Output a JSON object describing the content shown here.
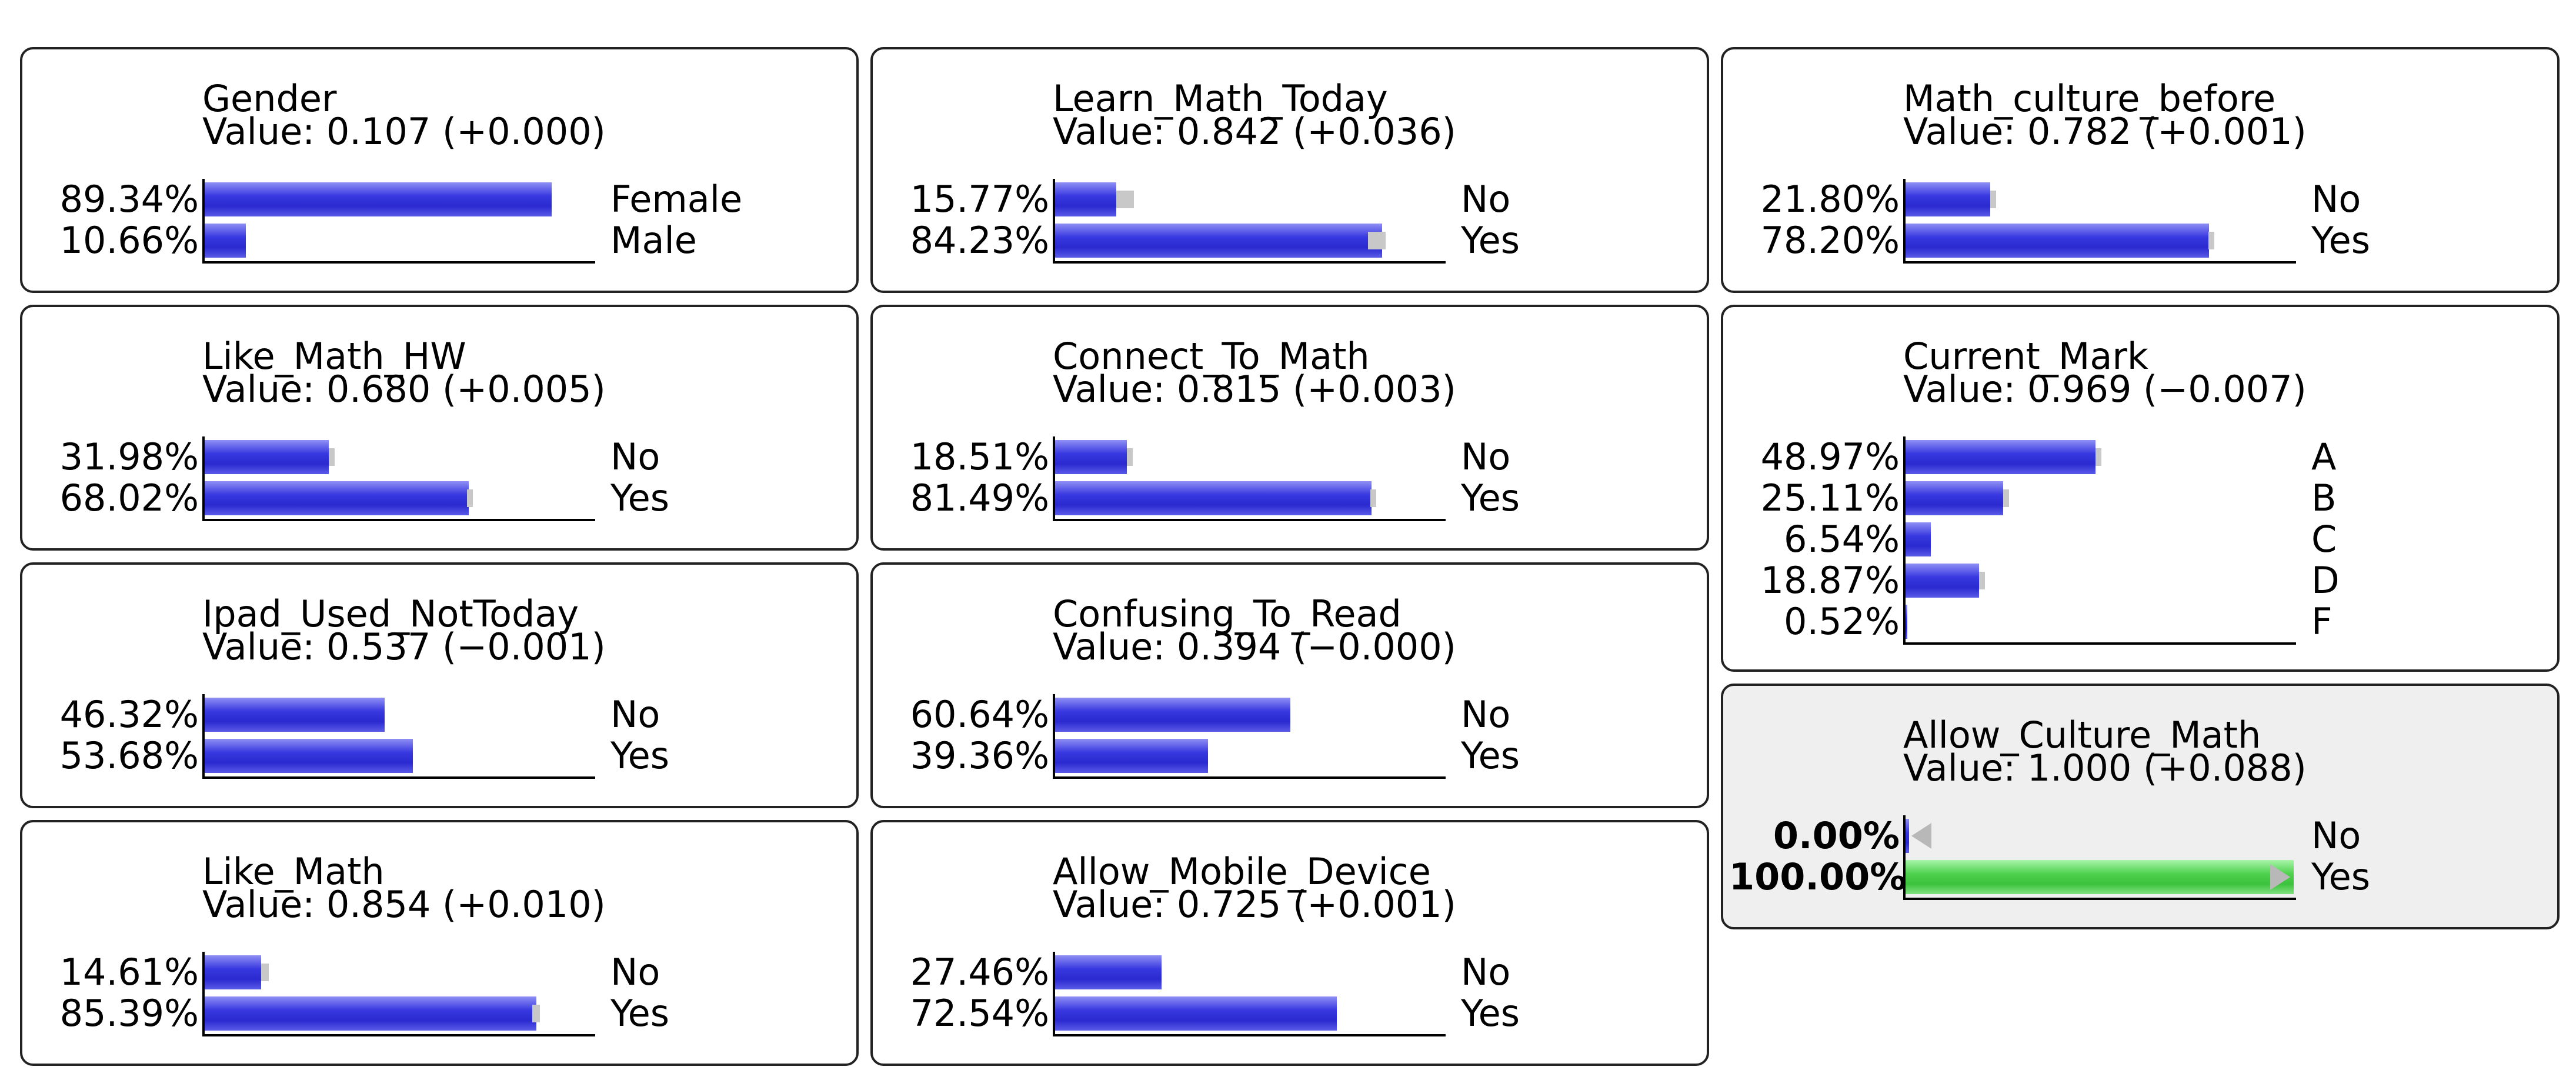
{
  "nodes": [
    {
      "id": "gender",
      "name": "Gender",
      "value_text": "Value: 0.107 (+0.000)",
      "states": [
        {
          "label": "Female",
          "pct": "89.34%",
          "p": 0.8934,
          "prev": 0.8934
        },
        {
          "label": "Male",
          "pct": "10.66%",
          "p": 0.1066,
          "prev": 0.1066
        }
      ]
    },
    {
      "id": "learn-math-today",
      "name": "Learn_Math_Today",
      "value_text": "Value: 0.842 (+0.036)",
      "states": [
        {
          "label": "No",
          "pct": "15.77%",
          "p": 0.1577,
          "prev": 0.194
        },
        {
          "label": "Yes",
          "pct": "84.23%",
          "p": 0.8423,
          "prev": 0.806
        }
      ]
    },
    {
      "id": "math-culture-before",
      "name": "Math_culture_before",
      "value_text": "Value: 0.782 (+0.001)",
      "states": [
        {
          "label": "No",
          "pct": "21.80%",
          "p": 0.218,
          "prev": 0.219
        },
        {
          "label": "Yes",
          "pct": "78.20%",
          "p": 0.782,
          "prev": 0.781
        }
      ]
    },
    {
      "id": "like-math-hw",
      "name": "Like_Math_HW",
      "value_text": "Value: 0.680 (+0.005)",
      "states": [
        {
          "label": "No",
          "pct": "31.98%",
          "p": 0.3198,
          "prev": 0.325
        },
        {
          "label": "Yes",
          "pct": "68.02%",
          "p": 0.6802,
          "prev": 0.675
        }
      ]
    },
    {
      "id": "connect-to-math",
      "name": "Connect_To_Math",
      "value_text": "Value: 0.815 (+0.003)",
      "states": [
        {
          "label": "No",
          "pct": "18.51%",
          "p": 0.1851,
          "prev": 0.188
        },
        {
          "label": "Yes",
          "pct": "81.49%",
          "p": 0.8149,
          "prev": 0.812
        }
      ]
    },
    {
      "id": "current-mark",
      "name": "Current_Mark",
      "value_text": "Value: 0.969 (−0.007)",
      "states": [
        {
          "label": "A",
          "pct": "48.97%",
          "p": 0.4897,
          "prev": 0.495
        },
        {
          "label": "B",
          "pct": "25.11%",
          "p": 0.2511,
          "prev": 0.257
        },
        {
          "label": "C",
          "pct": "6.54%",
          "p": 0.0654,
          "prev": 0.0654
        },
        {
          "label": "D",
          "pct": "18.87%",
          "p": 0.1887,
          "prev": 0.196
        },
        {
          "label": "F",
          "pct": "0.52%",
          "p": 0.0052,
          "prev": 0.0052
        }
      ]
    },
    {
      "id": "ipad-used-nottoday",
      "name": "Ipad_Used_NotToday",
      "value_text": "Value: 0.537 (−0.001)",
      "states": [
        {
          "label": "No",
          "pct": "46.32%",
          "p": 0.4632,
          "prev": 0.4632
        },
        {
          "label": "Yes",
          "pct": "53.68%",
          "p": 0.5368,
          "prev": 0.5368
        }
      ]
    },
    {
      "id": "confusing-to-read",
      "name": "Confusing_To_Read",
      "value_text": "Value: 0.394 (−0.000)",
      "states": [
        {
          "label": "No",
          "pct": "60.64%",
          "p": 0.6064,
          "prev": 0.6064
        },
        {
          "label": "Yes",
          "pct": "39.36%",
          "p": 0.3936,
          "prev": 0.3936
        }
      ]
    },
    {
      "id": "allow-culture-math",
      "name": "Allow_Culture_Math",
      "value_text": "Value: 1.000 (+0.088)",
      "evidence": true,
      "states": [
        {
          "label": "No",
          "pct": "0.00%",
          "p": 0.0,
          "prev": 0.088
        },
        {
          "label": "Yes",
          "pct": "100.00%",
          "p": 1.0,
          "prev": 0.912
        }
      ]
    },
    {
      "id": "like-math",
      "name": "Like_Math",
      "value_text": "Value: 0.854 (+0.010)",
      "states": [
        {
          "label": "No",
          "pct": "14.61%",
          "p": 0.1461,
          "prev": 0.156
        },
        {
          "label": "Yes",
          "pct": "85.39%",
          "p": 0.8539,
          "prev": 0.844
        }
      ]
    },
    {
      "id": "allow-mobile-device",
      "name": "Allow_Mobile_Device",
      "value_text": "Value: 0.725 (+0.001)",
      "states": [
        {
          "label": "No",
          "pct": "27.46%",
          "p": 0.2746,
          "prev": 0.2746
        },
        {
          "label": "Yes",
          "pct": "72.54%",
          "p": 0.7254,
          "prev": 0.7254
        }
      ]
    }
  ]
}
